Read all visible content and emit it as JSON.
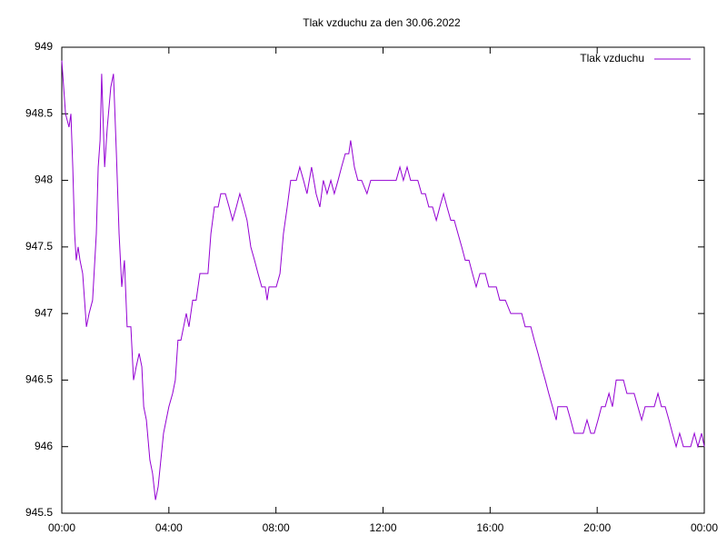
{
  "chart_data": {
    "type": "line",
    "title": "Tlak vzduchu za den 30.06.2022",
    "legend": "top-right",
    "grid": false,
    "xlim": [
      0,
      24
    ],
    "xticks": [
      {
        "value": 0,
        "label": "00:00"
      },
      {
        "value": 4,
        "label": "04:00"
      },
      {
        "value": 8,
        "label": "08:00"
      },
      {
        "value": 12,
        "label": "12:00"
      },
      {
        "value": 16,
        "label": "16:00"
      },
      {
        "value": 20,
        "label": "20:00"
      },
      {
        "value": 24,
        "label": "00:00"
      }
    ],
    "ylim": [
      945.5,
      949
    ],
    "yticks": [
      945.5,
      946,
      946.5,
      947,
      947.5,
      948,
      948.5,
      949
    ],
    "x": [
      0,
      0.14,
      0.27,
      0.34,
      0.41,
      0.48,
      0.54,
      0.61,
      0.68,
      0.78,
      0.92,
      1.02,
      1.15,
      1.29,
      1.36,
      1.43,
      1.49,
      1.6,
      1.7,
      1.83,
      1.93,
      2.04,
      2.14,
      2.24,
      2.34,
      2.44,
      2.58,
      2.68,
      2.78,
      2.89,
      2.99,
      3.06,
      3.16,
      3.29,
      3.39,
      3.5,
      3.6,
      3.7,
      3.8,
      3.9,
      4.0,
      4.14,
      4.24,
      4.34,
      4.45,
      4.55,
      4.65,
      4.75,
      4.89,
      5.02,
      5.16,
      5.36,
      5.46,
      5.57,
      5.7,
      5.84,
      5.94,
      6.11,
      6.25,
      6.38,
      6.52,
      6.65,
      6.79,
      6.92,
      7.06,
      7.2,
      7.33,
      7.47,
      7.6,
      7.67,
      7.74,
      8.01,
      8.15,
      8.28,
      8.42,
      8.55,
      8.76,
      8.89,
      9.03,
      9.16,
      9.33,
      9.5,
      9.64,
      9.77,
      9.91,
      10.05,
      10.18,
      10.32,
      10.45,
      10.59,
      10.72,
      10.79,
      10.93,
      11.06,
      11.2,
      11.4,
      11.54,
      11.95,
      12.36,
      12.49,
      12.63,
      12.76,
      12.9,
      13.03,
      13.3,
      13.44,
      13.58,
      13.71,
      13.85,
      13.99,
      14.12,
      14.26,
      14.39,
      14.53,
      14.66,
      14.8,
      14.94,
      15.07,
      15.21,
      15.34,
      15.48,
      15.62,
      15.82,
      15.95,
      16.23,
      16.36,
      16.57,
      16.77,
      17.18,
      17.31,
      17.52,
      17.65,
      17.79,
      17.92,
      18.06,
      18.19,
      18.33,
      18.47,
      18.53,
      18.87,
      19.01,
      19.14,
      19.48,
      19.62,
      19.76,
      19.89,
      20.03,
      20.16,
      20.3,
      20.44,
      20.57,
      20.71,
      20.98,
      21.11,
      21.38,
      21.52,
      21.66,
      21.79,
      22.13,
      22.27,
      22.4,
      22.54,
      22.68,
      22.81,
      22.95,
      23.08,
      23.22,
      23.49,
      23.63,
      23.76,
      23.9,
      24
    ],
    "series": [
      {
        "name": "Tlak vzduchu",
        "color": "#9400d3",
        "values": [
          948.9,
          948.5,
          948.4,
          948.5,
          948.1,
          947.6,
          947.4,
          947.5,
          947.4,
          947.3,
          946.9,
          947.0,
          947.1,
          947.6,
          948.1,
          948.3,
          948.8,
          948.1,
          948.4,
          948.7,
          948.8,
          948.2,
          947.6,
          947.2,
          947.4,
          946.9,
          946.9,
          946.5,
          946.6,
          946.7,
          946.6,
          946.3,
          946.2,
          945.9,
          945.8,
          945.6,
          945.7,
          945.9,
          946.1,
          946.2,
          946.3,
          946.4,
          946.5,
          946.8,
          946.8,
          946.9,
          947.0,
          946.9,
          947.1,
          947.1,
          947.3,
          947.3,
          947.3,
          947.6,
          947.8,
          947.8,
          947.9,
          947.9,
          947.8,
          947.7,
          947.8,
          947.9,
          947.8,
          947.7,
          947.5,
          947.4,
          947.3,
          947.2,
          947.2,
          947.1,
          947.2,
          947.2,
          947.3,
          947.6,
          947.8,
          948.0,
          948.0,
          948.1,
          948.0,
          947.9,
          948.1,
          947.9,
          947.8,
          948.0,
          947.9,
          948.0,
          947.9,
          948.0,
          948.1,
          948.2,
          948.2,
          948.3,
          948.1,
          948.0,
          948.0,
          947.9,
          948.0,
          948.0,
          948.0,
          948.0,
          948.1,
          948.0,
          948.1,
          948.0,
          948.0,
          947.9,
          947.9,
          947.8,
          947.8,
          947.7,
          947.8,
          947.9,
          947.8,
          947.7,
          947.7,
          947.6,
          947.5,
          947.4,
          947.4,
          947.3,
          947.2,
          947.3,
          947.3,
          947.2,
          947.2,
          947.1,
          947.1,
          947.0,
          947.0,
          946.9,
          946.9,
          946.8,
          946.7,
          946.6,
          946.5,
          946.4,
          946.3,
          946.2,
          946.3,
          946.3,
          946.2,
          946.1,
          946.1,
          946.2,
          946.1,
          946.1,
          946.2,
          946.3,
          946.3,
          946.4,
          946.3,
          946.5,
          946.5,
          946.4,
          946.4,
          946.3,
          946.2,
          946.3,
          946.3,
          946.4,
          946.3,
          946.3,
          946.2,
          946.1,
          946.0,
          946.1,
          946.0,
          946.0,
          946.1,
          946.0,
          946.1,
          946.0
        ]
      }
    ]
  }
}
